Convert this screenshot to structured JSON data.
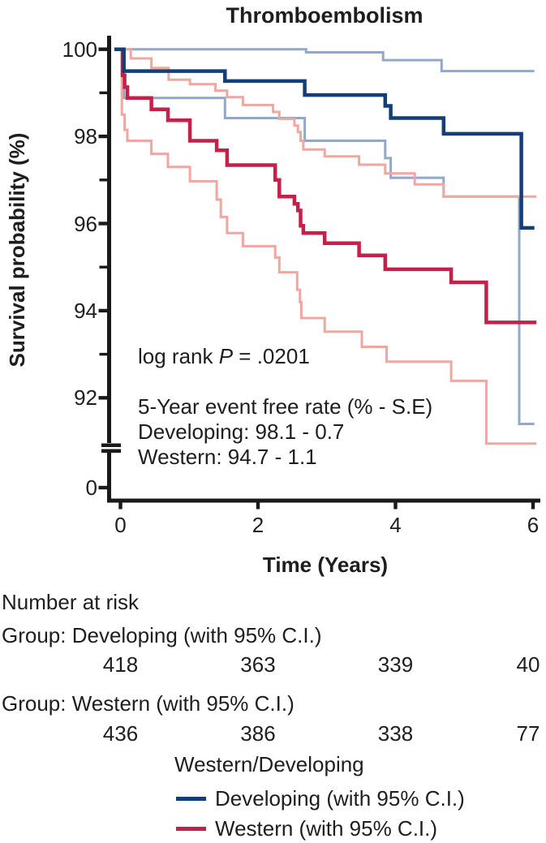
{
  "colors": {
    "developing": "#123f78",
    "developing_ci": "#93a7c9",
    "western": "#c5204a",
    "western_ci": "#efa79f",
    "axis": "#1a1a1a",
    "text": "#1e1e1f"
  },
  "annotations": {
    "logrank_prefix": "log rank ",
    "logrank_p": "P",
    "logrank_suffix": " = .0201",
    "rate_heading": "5-Year event free rate (% - S.E)",
    "rate_developing": "Developing: 98.1 - 0.7",
    "rate_western": "Western: 94.7 - 1.1"
  },
  "at_risk": {
    "heading": "Number at risk",
    "time_points": [
      0,
      2,
      4,
      6
    ],
    "groups": [
      {
        "label": "Group: Developing (with 95% C.I.)",
        "values": [
          "418",
          "363",
          "339",
          "40"
        ]
      },
      {
        "label": "Group: Western (with 95% C.I.)",
        "values": [
          "436",
          "386",
          "338",
          "77"
        ]
      }
    ]
  },
  "legend": {
    "title": "Western/Developing",
    "items": [
      {
        "label": "Developing (with 95% C.I.)",
        "color": "#123f78"
      },
      {
        "label": "Western (with 95% C.I.)",
        "color": "#c5204a"
      }
    ]
  },
  "chart_data": {
    "type": "line",
    "subtype": "kaplan-meier-step",
    "title": "Thromboembolism",
    "xlabel": "Time (Years)",
    "ylabel": "Survival probability (%)",
    "x_ticks": [
      0,
      2,
      4,
      6
    ],
    "y_ticks_major": [
      100,
      98,
      96,
      94,
      92
    ],
    "y_ticks_minor": [
      99,
      97,
      95,
      93
    ],
    "y_axis_break": true,
    "y_zero_tick_label": "0",
    "xlim": [
      0,
      6.1
    ],
    "ylim_visible": [
      90.9,
      100
    ],
    "grid": false,
    "legend_position": "below",
    "series": [
      {
        "name": "Developing upper 95% CI",
        "color": "#93a7c9",
        "width": 3,
        "steps": [
          [
            0,
            100
          ],
          [
            2.7,
            99.93
          ],
          [
            3.82,
            99.75
          ],
          [
            4.67,
            99.5
          ]
        ],
        "end": 6.02
      },
      {
        "name": "Developing lower 95% CI",
        "color": "#93a7c9",
        "width": 3,
        "steps": [
          [
            0,
            100
          ],
          [
            0.05,
            98.88
          ],
          [
            1.52,
            98.42
          ],
          [
            2.68,
            97.9
          ],
          [
            3.85,
            97.5
          ],
          [
            3.93,
            97.05
          ],
          [
            4.7,
            96.62
          ],
          [
            5.8,
            91.4
          ]
        ],
        "end": 6.02
      },
      {
        "name": "Western upper 95% CI",
        "color": "#efa79f",
        "width": 3,
        "steps": [
          [
            0,
            100
          ],
          [
            0.15,
            99.79
          ],
          [
            0.45,
            99.57
          ],
          [
            0.7,
            99.3
          ],
          [
            1.01,
            99.2
          ],
          [
            1.38,
            99.05
          ],
          [
            1.55,
            98.9
          ],
          [
            1.78,
            98.72
          ],
          [
            2.22,
            98.56
          ],
          [
            2.31,
            98.4
          ],
          [
            2.53,
            98.25
          ],
          [
            2.58,
            98.1
          ],
          [
            2.62,
            97.9
          ],
          [
            2.66,
            97.7
          ],
          [
            2.97,
            97.54
          ],
          [
            3.47,
            97.35
          ],
          [
            3.85,
            97.15
          ],
          [
            4.28,
            96.9
          ],
          [
            4.7,
            96.62
          ]
        ],
        "end": 6.05
      },
      {
        "name": "Western lower 95% CI",
        "color": "#efa79f",
        "width": 3,
        "steps": [
          [
            0,
            100
          ],
          [
            0.02,
            98.5
          ],
          [
            0.06,
            98.15
          ],
          [
            0.1,
            97.9
          ],
          [
            0.45,
            97.6
          ],
          [
            0.69,
            97.3
          ],
          [
            1.01,
            96.97
          ],
          [
            1.4,
            96.55
          ],
          [
            1.46,
            96.15
          ],
          [
            1.55,
            95.78
          ],
          [
            1.78,
            95.48
          ],
          [
            2.25,
            95.22
          ],
          [
            2.31,
            94.88
          ],
          [
            2.57,
            94.48
          ],
          [
            2.61,
            94.2
          ],
          [
            2.63,
            93.83
          ],
          [
            2.97,
            93.52
          ],
          [
            3.51,
            93.17
          ],
          [
            3.87,
            92.83
          ],
          [
            4.81,
            92.39
          ],
          [
            5.32,
            90.95
          ]
        ],
        "end": 6.05
      },
      {
        "name": "Western",
        "color": "#c5204a",
        "width": 4.5,
        "steps": [
          [
            0,
            100
          ],
          [
            0.03,
            99.4
          ],
          [
            0.06,
            99.13
          ],
          [
            0.1,
            98.88
          ],
          [
            0.45,
            98.62
          ],
          [
            0.69,
            98.37
          ],
          [
            1.01,
            97.9
          ],
          [
            1.4,
            97.68
          ],
          [
            1.55,
            97.34
          ],
          [
            2.25,
            97.0
          ],
          [
            2.31,
            96.62
          ],
          [
            2.53,
            96.45
          ],
          [
            2.58,
            96.3
          ],
          [
            2.62,
            95.95
          ],
          [
            2.66,
            95.78
          ],
          [
            2.97,
            95.55
          ],
          [
            3.47,
            95.27
          ],
          [
            3.85,
            94.95
          ],
          [
            4.81,
            94.65
          ],
          [
            5.32,
            93.73
          ]
        ],
        "end": 6.05
      },
      {
        "name": "Developing",
        "color": "#123f78",
        "width": 4.5,
        "steps": [
          [
            0,
            100
          ],
          [
            0.05,
            99.5
          ],
          [
            1.52,
            99.27
          ],
          [
            2.68,
            98.95
          ],
          [
            3.85,
            98.7
          ],
          [
            3.93,
            98.42
          ],
          [
            4.7,
            98.06
          ],
          [
            5.83,
            95.9
          ]
        ],
        "end": 6.02
      }
    ]
  }
}
